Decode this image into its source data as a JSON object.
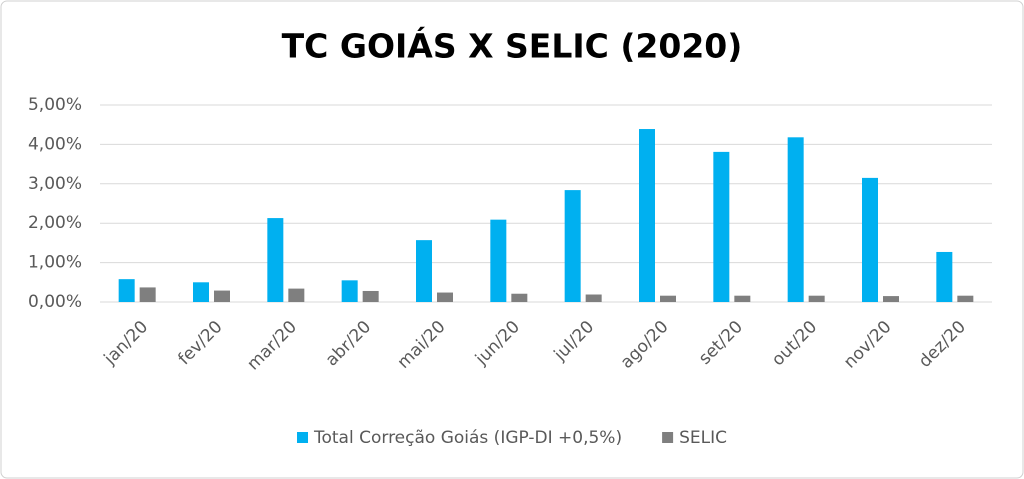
{
  "chart_data": {
    "type": "bar",
    "title": "TC GOIÁS X SELIC (2020)",
    "categories": [
      "jan/20",
      "fev/20",
      "mar/20",
      "abr/20",
      "mai/20",
      "jun/20",
      "jul/20",
      "ago/20",
      "set/20",
      "out/20",
      "nov/20",
      "dez/20"
    ],
    "series": [
      {
        "name": "Total Correção Goiás (IGP-DI +0,5%)",
        "color": "#00b0f0",
        "values": [
          0.58,
          0.5,
          2.13,
          0.55,
          1.57,
          2.09,
          2.84,
          4.39,
          3.81,
          4.18,
          3.15,
          1.27
        ]
      },
      {
        "name": "SELIC",
        "color": "#7f7f7f",
        "values": [
          0.37,
          0.29,
          0.34,
          0.28,
          0.24,
          0.21,
          0.19,
          0.16,
          0.16,
          0.16,
          0.15,
          0.16
        ]
      }
    ],
    "ylim": [
      0,
      5
    ],
    "yticks": [
      {
        "value": 0,
        "label": "0,00%"
      },
      {
        "value": 1,
        "label": "1,00%"
      },
      {
        "value": 2,
        "label": "2,00%"
      },
      {
        "value": 3,
        "label": "3,00%"
      },
      {
        "value": 4,
        "label": "4,00%"
      },
      {
        "value": 5,
        "label": "5,00%"
      }
    ],
    "grid": true,
    "legend": "bottom"
  }
}
